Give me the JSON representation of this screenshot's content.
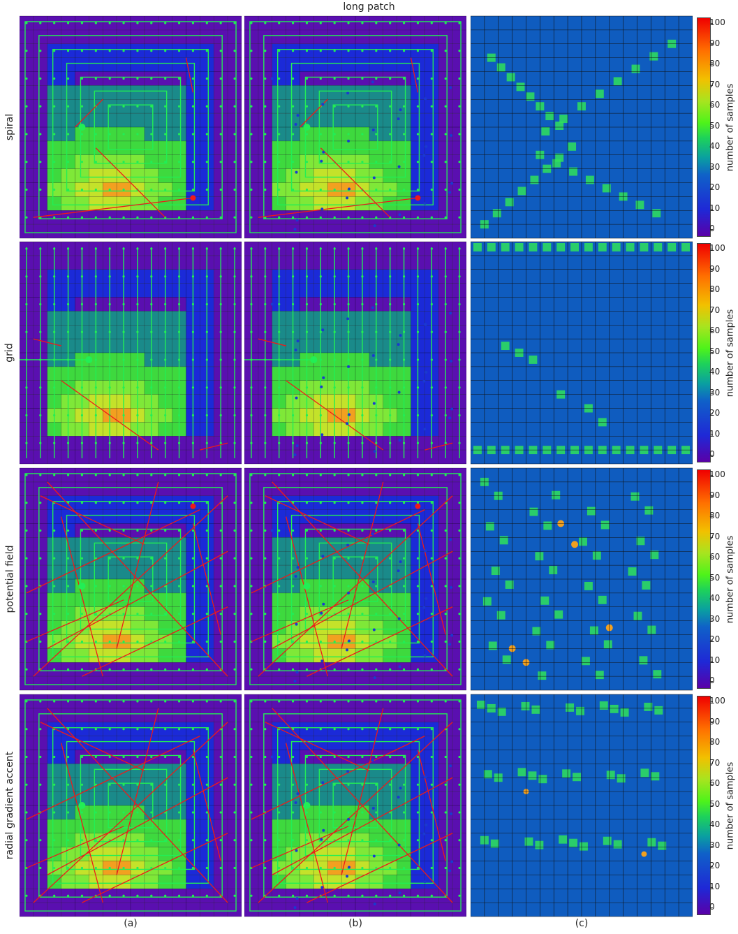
{
  "figure": {
    "title": "long patch",
    "rows": [
      "spiral",
      "grid",
      "potential field",
      "radial gradient accent"
    ],
    "columns": [
      "(a)",
      "(b)",
      "(c)"
    ],
    "colorbar": {
      "label": "number of samples",
      "ticks": [
        "100",
        "90",
        "80",
        "70",
        "60",
        "50",
        "40",
        "30",
        "20",
        "10",
        "0"
      ]
    }
  },
  "colors": {
    "outer_band": "#5a0fb0",
    "blue_band": "#1b2ad8",
    "teal": "#1a8a8a",
    "green": "#3ed93e",
    "light_green": "#7fe838",
    "yellow_green": "#c4e22a",
    "orange": "#f2a020",
    "path_green": "#22ee55",
    "path_red": "#ee1a1a",
    "coverage_bg": "#0f5cbf",
    "grid_line": "#111111"
  }
}
